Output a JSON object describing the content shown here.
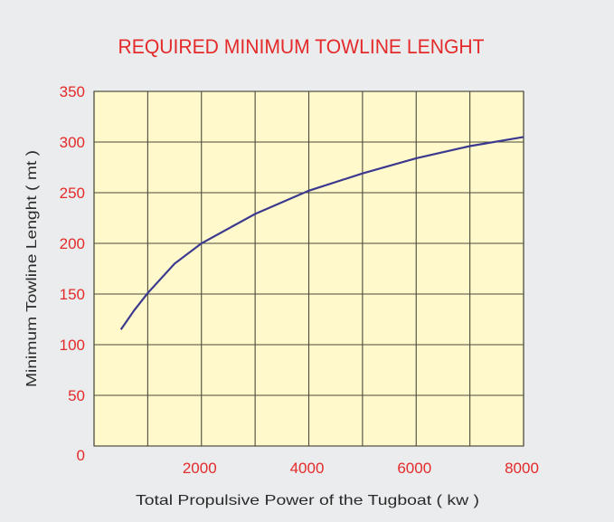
{
  "chart_data": {
    "type": "line",
    "title": "REQUIRED MINIMUM TOWLINE LENGHT",
    "xlabel": "Total Propulsive Power of the Tugboat ( kw )",
    "ylabel": "Minimum Towline Lenght ( mt )",
    "xlim": [
      0,
      8000
    ],
    "ylim": [
      0,
      350
    ],
    "xticks": [
      0,
      1000,
      2000,
      3000,
      4000,
      5000,
      6000,
      7000,
      8000
    ],
    "xtick_labels": [
      "2000",
      "4000",
      "6000",
      "8000"
    ],
    "xtick_label_values": [
      2000,
      4000,
      6000,
      8000
    ],
    "yticks": [
      0,
      50,
      100,
      150,
      200,
      250,
      300,
      350
    ],
    "ytick_labels": [
      "0",
      "50",
      "100",
      "150",
      "200",
      "250",
      "300",
      "350"
    ],
    "grid": true,
    "series": [
      {
        "x": [
          500,
          750,
          1000,
          1500,
          2000,
          3000,
          4000,
          5000,
          6000,
          7000,
          8000
        ],
        "y": [
          115,
          134,
          151,
          180,
          200,
          229,
          252,
          269,
          284,
          296,
          305
        ]
      }
    ],
    "colors": {
      "title": "#e42a2a",
      "ticks": "#e42a2a",
      "plot_bg": "#fff9cc",
      "line": "#3b3a8e",
      "grid": "#4a4a3a",
      "background": "#ebeced"
    }
  }
}
